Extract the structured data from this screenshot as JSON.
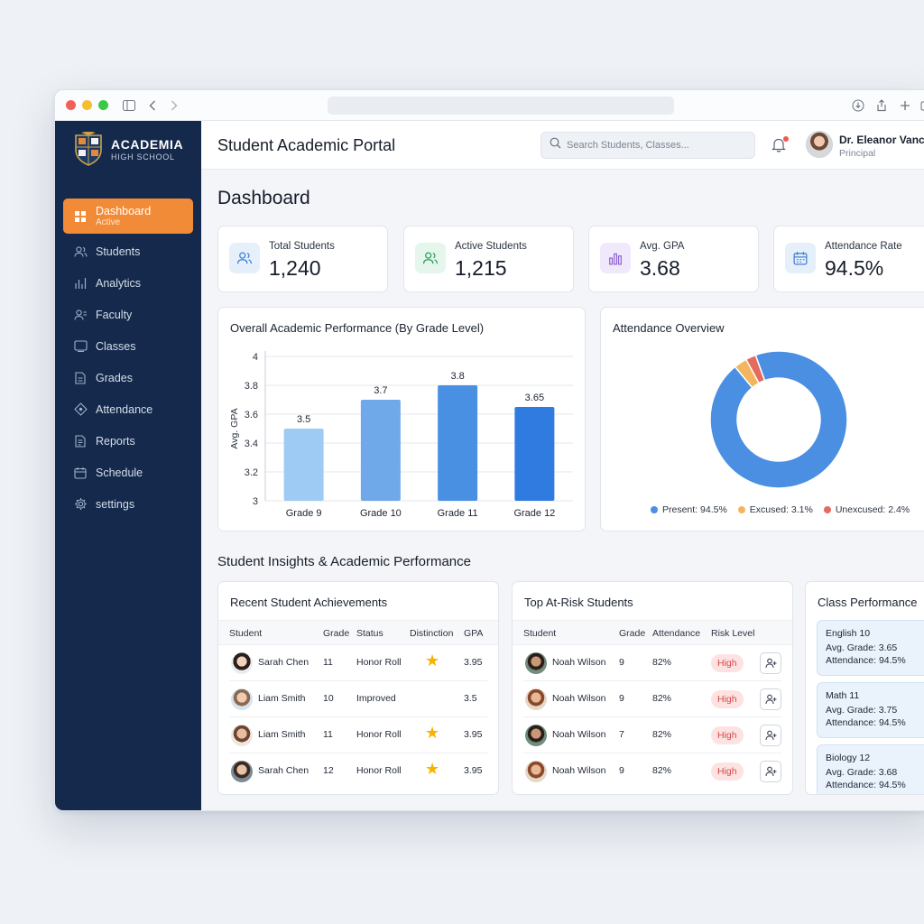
{
  "app": {
    "school_name": "ACADEMIA",
    "school_sub": "HIGH SCHOOL",
    "title": "Student Academic Portal"
  },
  "sidebar": {
    "items": [
      {
        "label": "Dashboard",
        "sub": "Active",
        "icon": "dashboard-icon",
        "active": true
      },
      {
        "label": "Students",
        "icon": "users-icon"
      },
      {
        "label": "Analytics",
        "icon": "bar-chart-icon"
      },
      {
        "label": "Faculty",
        "icon": "faculty-icon"
      },
      {
        "label": "Classes",
        "icon": "class-icon"
      },
      {
        "label": "Grades",
        "icon": "document-icon"
      },
      {
        "label": "Attendance",
        "icon": "attendance-icon"
      },
      {
        "label": "Reports",
        "icon": "report-icon"
      },
      {
        "label": "Schedule",
        "icon": "calendar-icon"
      },
      {
        "label": "settings",
        "icon": "gear-icon"
      }
    ]
  },
  "header": {
    "search_placeholder": "Search Students, Classes...",
    "user_name": "Dr. Eleanor Vance",
    "user_role": "Principal"
  },
  "page": {
    "title": "Dashboard",
    "section_title": "Student Insights & Academic Performance"
  },
  "kpis": [
    {
      "label": "Total Students",
      "value": "1,240",
      "icon": "users-icon",
      "color": "#e6f0fb"
    },
    {
      "label": "Active Students",
      "value": "1,215",
      "icon": "users-icon",
      "color": "#e5f6ec"
    },
    {
      "label": "Avg. GPA",
      "value": "3.68",
      "icon": "bar-chart-icon",
      "color": "#f0e9fb"
    },
    {
      "label": "Attendance Rate",
      "value": "94.5%",
      "icon": "calendar-icon",
      "color": "#e6f0fb"
    }
  ],
  "performance": {
    "title": "Overall Academic Performance (By Grade Level)"
  },
  "attendance": {
    "title": "Attendance Overview"
  },
  "chart_data": [
    {
      "type": "bar",
      "title": "Overall Academic Performance (By Grade Level)",
      "categories": [
        "Grade 9",
        "Grade 10",
        "Grade 11",
        "Grade 12"
      ],
      "values": [
        3.5,
        3.7,
        3.8,
        3.65
      ],
      "value_labels": [
        "3.5",
        "3.7",
        "3.8",
        "3.65"
      ],
      "bar_colors": [
        "#9ecbf4",
        "#6fa9ea",
        "#4a90e2",
        "#2f7be0"
      ],
      "ylabel": "Avg. GPA",
      "ylim": [
        3,
        4
      ],
      "yticks": [
        "3",
        "3.2",
        "3.4",
        "3.6",
        "3.8",
        "4"
      ],
      "grid": true
    },
    {
      "type": "pie",
      "title": "Attendance Overview",
      "labels": [
        "Present",
        "Excused",
        "Unexcused"
      ],
      "values": [
        94.5,
        3.1,
        2.4
      ],
      "legend_labels": [
        "Present: 94.5%",
        "Excused: 3.1%",
        "Unexcused: 2.4%"
      ],
      "colors": [
        "#4a8fe2",
        "#f4b55f",
        "#e56a60"
      ],
      "legend": "bottom"
    }
  ],
  "achievements": {
    "title": "Recent Student Achievements",
    "columns": [
      "Student",
      "Grade",
      "Status",
      "Distinction",
      "GPA"
    ],
    "rows": [
      {
        "name": "Sarah Chen",
        "grade": "11",
        "status": "Honor Roll",
        "star": true,
        "gpa": "3.95"
      },
      {
        "name": "Liam Smith",
        "grade": "10",
        "status": "Improved",
        "star": false,
        "gpa": "3.5"
      },
      {
        "name": "Liam Smith",
        "grade": "11",
        "status": "Honor Roll",
        "star": true,
        "gpa": "3.95"
      },
      {
        "name": "Sarah Chen",
        "grade": "12",
        "status": "Honor Roll",
        "star": true,
        "gpa": "3.95"
      }
    ]
  },
  "at_risk": {
    "title": "Top At-Risk Students",
    "columns": [
      "Student",
      "Grade",
      "Attendance",
      "Risk Level"
    ],
    "rows": [
      {
        "name": "Noah Wilson",
        "grade": "9",
        "attendance": "82%",
        "risk": "High"
      },
      {
        "name": "Noah Wilson",
        "grade": "9",
        "attendance": "82%",
        "risk": "High"
      },
      {
        "name": "Noah Wilson",
        "grade": "7",
        "attendance": "82%",
        "risk": "High"
      },
      {
        "name": "Noah Wilson",
        "grade": "9",
        "attendance": "82%",
        "risk": "High"
      }
    ]
  },
  "class_performance": {
    "title": "Class Performance",
    "items": [
      {
        "name": "English 10",
        "grade": "Avg. Grade: 3.65",
        "attendance": "Attendance: 94.5%"
      },
      {
        "name": "Math 11",
        "grade": "Avg. Grade: 3.75",
        "attendance": "Attendance: 94.5%"
      },
      {
        "name": "Biology 12",
        "grade": "Avg. Grade: 3.68",
        "attendance": "Attendance: 94.5%"
      }
    ]
  }
}
